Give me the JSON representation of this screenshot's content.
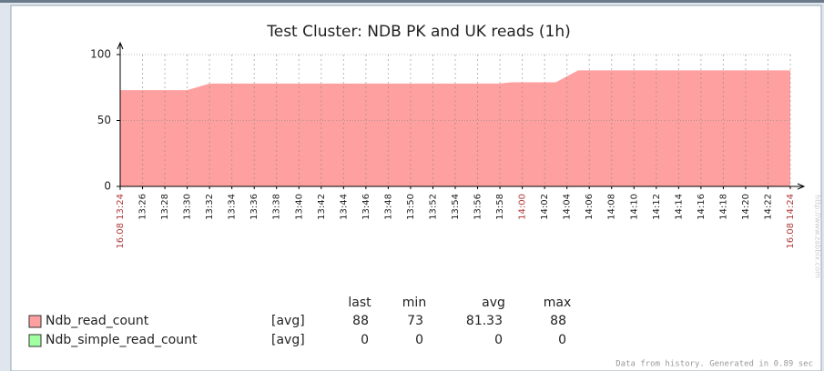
{
  "chart_data": {
    "type": "area",
    "title": "Test Cluster: NDB PK and UK reads  (1h)",
    "x": [
      "13:24",
      "13:30",
      "13:32",
      "13:58",
      "13:59",
      "14:03",
      "14:05",
      "14:24"
    ],
    "xlim": [
      "13:24",
      "14:24"
    ],
    "xticks": [
      "16.08 13:24",
      "13:26",
      "13:28",
      "13:30",
      "13:32",
      "13:34",
      "13:36",
      "13:38",
      "13:40",
      "13:42",
      "13:44",
      "13:46",
      "13:48",
      "13:50",
      "13:52",
      "13:54",
      "13:56",
      "13:58",
      "14:00",
      "14:02",
      "14:04",
      "14:06",
      "14:08",
      "14:10",
      "14:12",
      "14:14",
      "14:16",
      "14:18",
      "14:20",
      "14:22",
      "16.08 14:24"
    ],
    "xtick_highlight_color": "#b03a3a",
    "ylim": [
      0,
      100
    ],
    "yticks": [
      0,
      50,
      100
    ],
    "grid": true,
    "series": [
      {
        "name": "Ndb_read_count",
        "color": "#ffa0a0",
        "func": "[avg]",
        "values": [
          73,
          73,
          78,
          78,
          79,
          79,
          88,
          88
        ],
        "stats": {
          "last": 88,
          "min": 73,
          "avg": 81.33,
          "max": 88
        }
      },
      {
        "name": "Ndb_simple_read_count",
        "color": "#a0ffa0",
        "func": "[avg]",
        "stats": {
          "last": 0,
          "min": 0,
          "avg": 0,
          "max": 0
        }
      }
    ],
    "stat_headers": [
      "last",
      "min",
      "avg",
      "max"
    ],
    "footer": "Data from history. Generated in 0.89 sec",
    "watermark": "http://www.zabbix.com"
  }
}
